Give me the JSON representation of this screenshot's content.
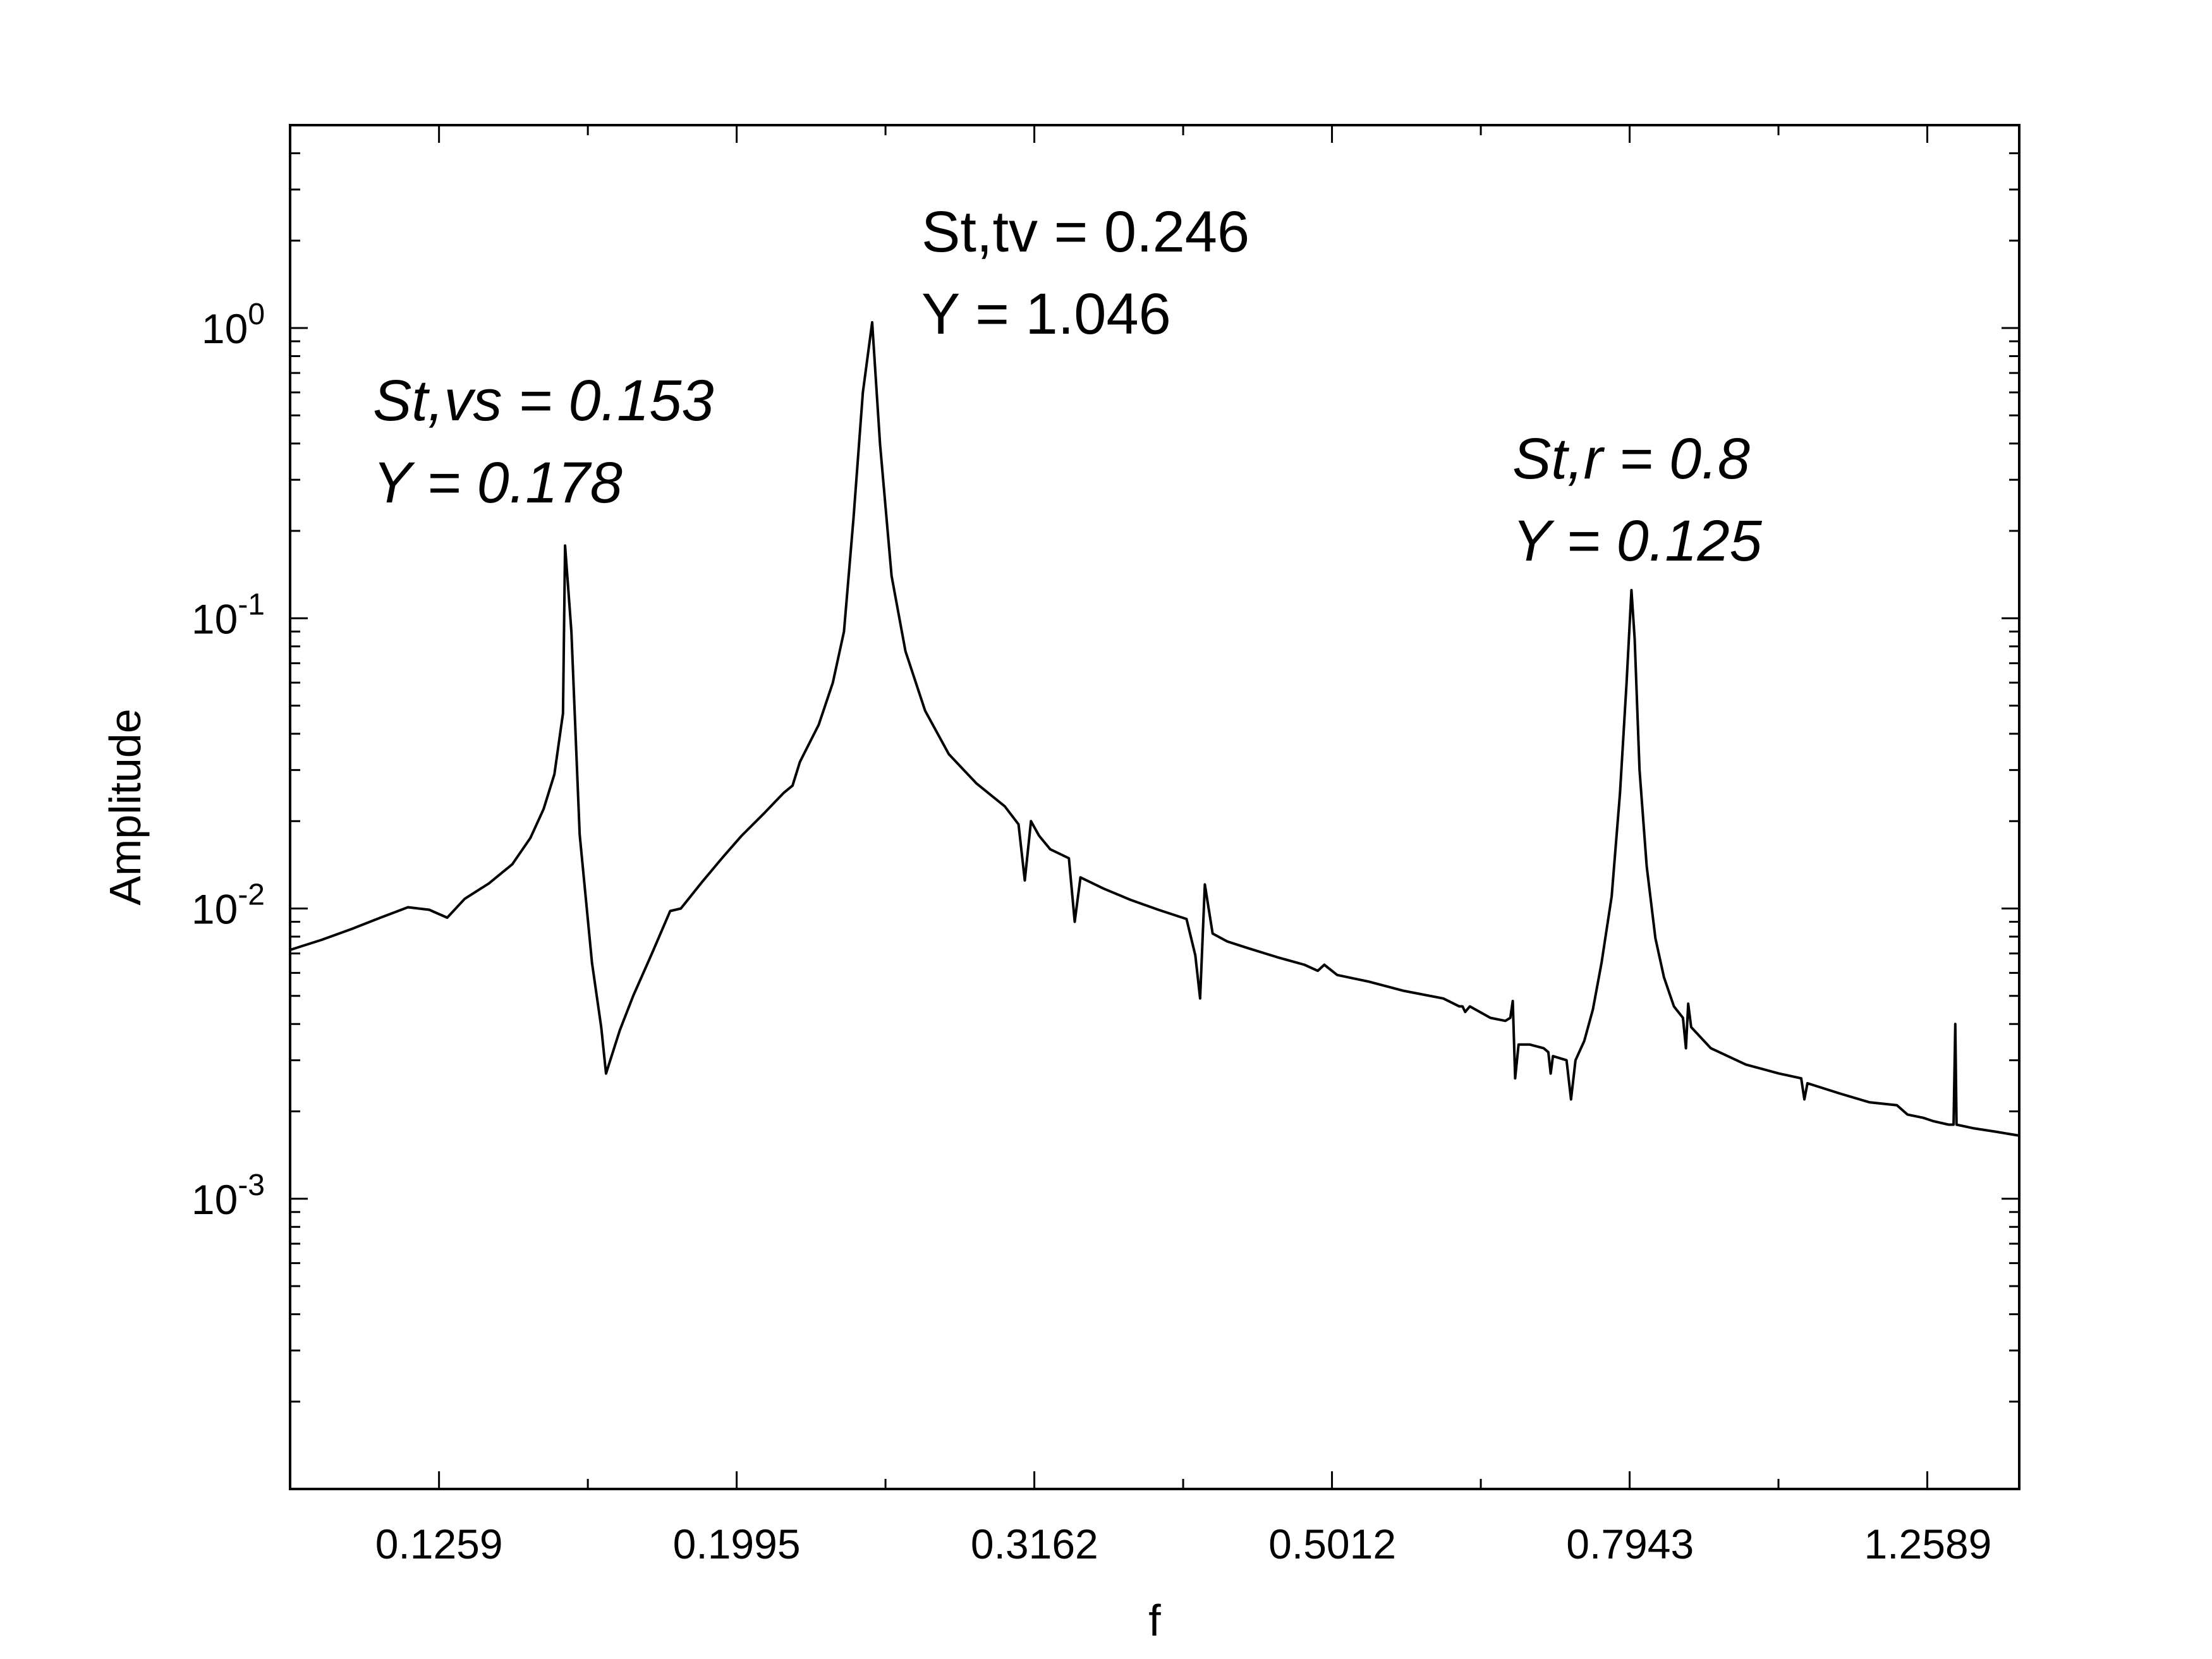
{
  "chart_data": {
    "type": "line",
    "xlabel": "f",
    "ylabel": "Amplitude",
    "xscale": "log",
    "yscale": "log",
    "xlim": [
      0.1,
      1.45
    ],
    "ylim": [
      0.0001,
      5
    ],
    "grid": false,
    "x_ticks": [
      0.1259,
      0.1995,
      0.3162,
      0.5012,
      0.7943,
      1.2589
    ],
    "x_tick_labels": [
      "0.1259",
      "0.1995",
      "0.3162",
      "0.5012",
      "0.7943",
      "1.2589"
    ],
    "y_ticks": [
      1,
      0.1,
      0.01,
      0.001
    ],
    "y_tick_labels": [
      {
        "base": "10",
        "exp": "0"
      },
      {
        "base": "10",
        "exp": "-1"
      },
      {
        "base": "10",
        "exp": "-2"
      },
      {
        "base": "10",
        "exp": "-3"
      }
    ],
    "annotations": [
      {
        "line1": "St,vs = 0.153",
        "line2": "Y = 0.178",
        "italic": true
      },
      {
        "line1": "St,tv = 0.246",
        "line2": "Y = 1.046",
        "italic": false
      },
      {
        "line1": "St,r = 0.8",
        "line2": "Y = 0.125",
        "italic": true
      }
    ],
    "series": [
      {
        "color": "#000000",
        "points": [
          [
            0.1,
            0.0072
          ],
          [
            0.105,
            0.0078
          ],
          [
            0.11,
            0.0085
          ],
          [
            0.115,
            0.0093
          ],
          [
            0.12,
            0.0101
          ],
          [
            0.124,
            0.0099
          ],
          [
            0.1275,
            0.0093
          ],
          [
            0.131,
            0.0108
          ],
          [
            0.136,
            0.0122
          ],
          [
            0.141,
            0.0142
          ],
          [
            0.145,
            0.0175
          ],
          [
            0.148,
            0.022
          ],
          [
            0.1505,
            0.029
          ],
          [
            0.1525,
            0.047
          ],
          [
            0.153,
            0.178
          ],
          [
            0.1545,
            0.09
          ],
          [
            0.1565,
            0.018
          ],
          [
            0.1595,
            0.0065
          ],
          [
            0.1618,
            0.0039
          ],
          [
            0.163,
            0.0027
          ],
          [
            0.1665,
            0.0038
          ],
          [
            0.17,
            0.005
          ],
          [
            0.175,
            0.007
          ],
          [
            0.18,
            0.0098
          ],
          [
            0.183,
            0.01
          ],
          [
            0.189,
            0.0123
          ],
          [
            0.195,
            0.0149
          ],
          [
            0.201,
            0.0178
          ],
          [
            0.208,
            0.0212
          ],
          [
            0.2145,
            0.025
          ],
          [
            0.2175,
            0.0265
          ],
          [
            0.22,
            0.032
          ],
          [
            0.2265,
            0.043
          ],
          [
            0.2315,
            0.06
          ],
          [
            0.2355,
            0.09
          ],
          [
            0.239,
            0.22
          ],
          [
            0.2425,
            0.6
          ],
          [
            0.246,
            1.046
          ],
          [
            0.249,
            0.4
          ],
          [
            0.2535,
            0.14
          ],
          [
            0.259,
            0.077
          ],
          [
            0.267,
            0.048
          ],
          [
            0.277,
            0.034
          ],
          [
            0.289,
            0.027
          ],
          [
            0.302,
            0.0225
          ],
          [
            0.3085,
            0.0195
          ],
          [
            0.3115,
            0.0125
          ],
          [
            0.3145,
            0.02
          ],
          [
            0.3185,
            0.0178
          ],
          [
            0.324,
            0.016
          ],
          [
            0.3335,
            0.0149
          ],
          [
            0.3365,
            0.009
          ],
          [
            0.3395,
            0.0128
          ],
          [
            0.352,
            0.0117
          ],
          [
            0.367,
            0.0107
          ],
          [
            0.383,
            0.0099
          ],
          [
            0.4,
            0.0092
          ],
          [
            0.4055,
            0.0069
          ],
          [
            0.4085,
            0.0049
          ],
          [
            0.4115,
            0.0121
          ],
          [
            0.4165,
            0.0082
          ],
          [
            0.426,
            0.0077
          ],
          [
            0.44,
            0.0073
          ],
          [
            0.46,
            0.0068
          ],
          [
            0.48,
            0.0064
          ],
          [
            0.49,
            0.0061
          ],
          [
            0.495,
            0.0064
          ],
          [
            0.505,
            0.0059
          ],
          [
            0.53,
            0.0056
          ],
          [
            0.56,
            0.0052
          ],
          [
            0.595,
            0.0049
          ],
          [
            0.61,
            0.0046
          ],
          [
            0.613,
            0.0046
          ],
          [
            0.6155,
            0.0044
          ],
          [
            0.62,
            0.0046
          ],
          [
            0.64,
            0.0042
          ],
          [
            0.655,
            0.0041
          ],
          [
            0.66,
            0.0042
          ],
          [
            0.6625,
            0.0048
          ],
          [
            0.665,
            0.0026
          ],
          [
            0.6685,
            0.0034
          ],
          [
            0.68,
            0.0034
          ],
          [
            0.695,
            0.0033
          ],
          [
            0.7,
            0.0032
          ],
          [
            0.7025,
            0.0027
          ],
          [
            0.705,
            0.0031
          ],
          [
            0.72,
            0.003
          ],
          [
            0.725,
            0.0022
          ],
          [
            0.73,
            0.003
          ],
          [
            0.74,
            0.0035
          ],
          [
            0.75,
            0.0045
          ],
          [
            0.76,
            0.0065
          ],
          [
            0.772,
            0.011
          ],
          [
            0.782,
            0.025
          ],
          [
            0.79,
            0.06
          ],
          [
            0.796,
            0.125
          ],
          [
            0.8,
            0.085
          ],
          [
            0.806,
            0.03
          ],
          [
            0.815,
            0.014
          ],
          [
            0.826,
            0.0079
          ],
          [
            0.837,
            0.0058
          ],
          [
            0.85,
            0.0046
          ],
          [
            0.862,
            0.0042
          ],
          [
            0.866,
            0.0033
          ],
          [
            0.869,
            0.0047
          ],
          [
            0.873,
            0.0039
          ],
          [
            0.9,
            0.0033
          ],
          [
            0.95,
            0.0029
          ],
          [
            1.0,
            0.0027
          ],
          [
            1.035,
            0.0026
          ],
          [
            1.04,
            0.0022
          ],
          [
            1.045,
            0.0025
          ],
          [
            1.1,
            0.0023
          ],
          [
            1.15,
            0.00215
          ],
          [
            1.2,
            0.0021
          ],
          [
            1.22,
            0.00195
          ],
          [
            1.25,
            0.0019
          ],
          [
            1.27,
            0.00185
          ],
          [
            1.3,
            0.0018
          ],
          [
            1.31,
            0.0018
          ],
          [
            1.3135,
            0.004
          ],
          [
            1.316,
            0.0018
          ],
          [
            1.35,
            0.00175
          ],
          [
            1.4,
            0.0017
          ],
          [
            1.45,
            0.00165
          ]
        ]
      }
    ]
  }
}
